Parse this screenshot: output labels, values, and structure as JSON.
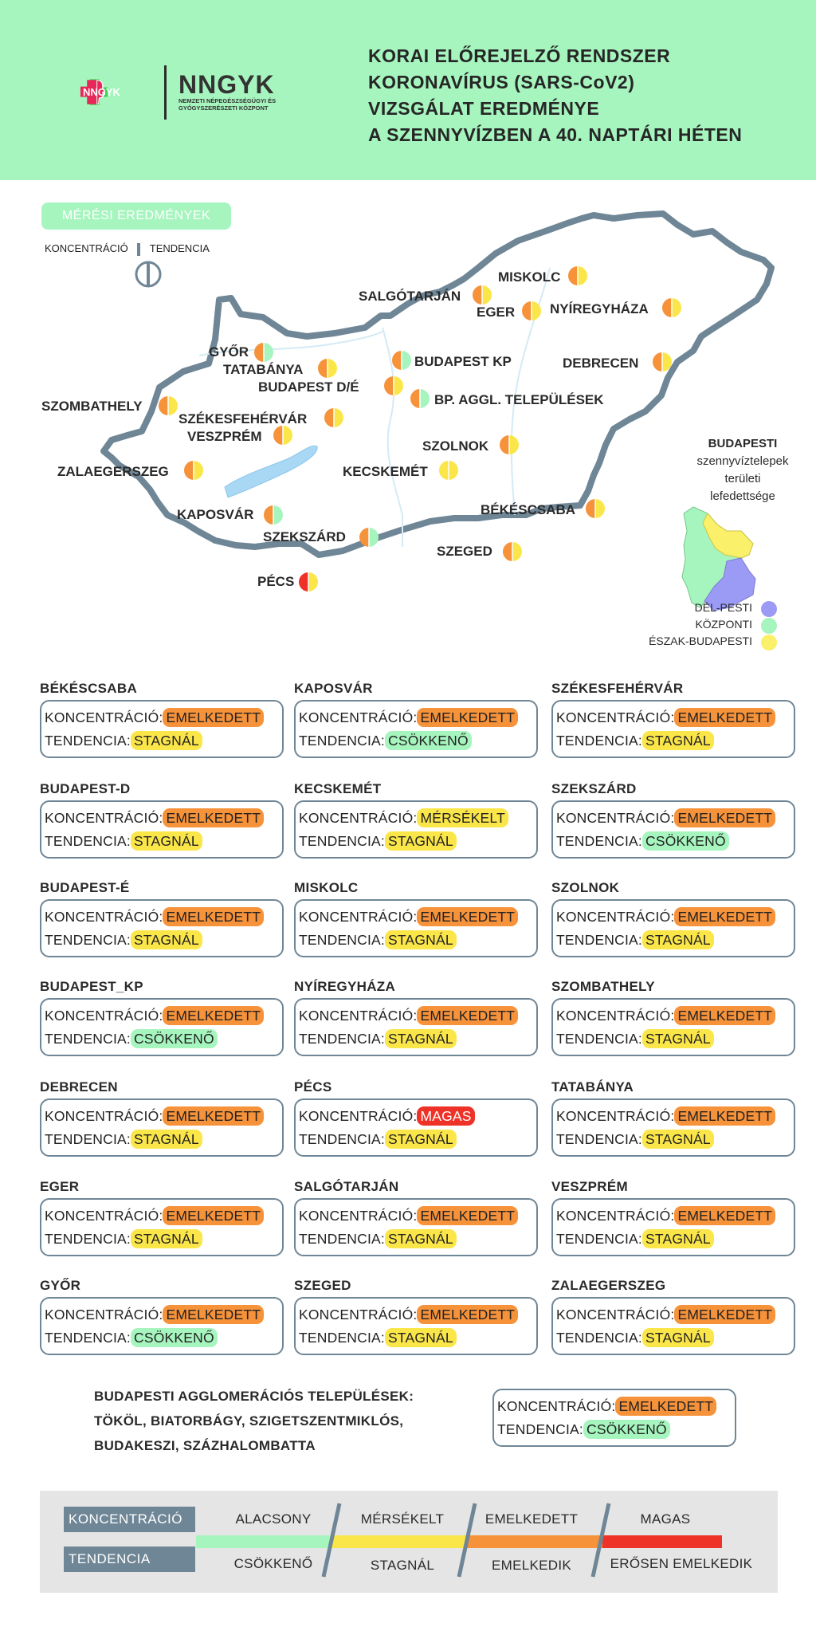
{
  "header": {
    "logo_badge": "NNGYK",
    "logo_title": "NNGYK",
    "logo_subtitle": "NEMZETI NÉPEGÉSZSÉGÜGYI ÉS GYÓGYSZERÉSZETI KÖZPONT",
    "title_lines": [
      "KORAI ELŐREJELZŐ RENDSZER",
      "KORONAVÍRUS (SARS-CoV2)",
      "VIZSGÁLAT EREDMÉNYE",
      "A SZENNYVÍZBEN A 40. NAPTÁRI HÉTEN"
    ]
  },
  "map": {
    "badge": "MÉRÉSI EREDMÉNYEK",
    "legend_concentration": "KONCENTRÁCIÓ",
    "legend_trend": "TENDENCIA",
    "cities": [
      {
        "name": "MISKOLC",
        "left": "orange",
        "right": "yellow"
      },
      {
        "name": "SALGÓTARJÁN",
        "left": "orange",
        "right": "yellow"
      },
      {
        "name": "EGER",
        "left": "orange",
        "right": "yellow"
      },
      {
        "name": "NYÍREGYHÁZA",
        "left": "orange",
        "right": "yellow"
      },
      {
        "name": "GYŐR",
        "left": "orange",
        "right": "green"
      },
      {
        "name": "TATABÁNYA",
        "left": "orange",
        "right": "yellow"
      },
      {
        "name": "BUDAPEST KP",
        "left": "orange",
        "right": "green"
      },
      {
        "name": "BUDAPEST D/É",
        "left": "orange",
        "right": "yellow"
      },
      {
        "name": "DEBRECEN",
        "left": "orange",
        "right": "yellow"
      },
      {
        "name": "BP. AGGL. TELEPÜLÉSEK",
        "left": "orange",
        "right": "green"
      },
      {
        "name": "SZOMBATHELY",
        "left": "orange",
        "right": "yellow"
      },
      {
        "name": "SZÉKESFEHÉRVÁR",
        "left": "orange",
        "right": "yellow"
      },
      {
        "name": "VESZPRÉM",
        "left": "orange",
        "right": "yellow"
      },
      {
        "name": "SZOLNOK",
        "left": "orange",
        "right": "yellow"
      },
      {
        "name": "ZALAEGERSZEG",
        "left": "orange",
        "right": "yellow"
      },
      {
        "name": "KECSKEMÉT",
        "left": "yellow",
        "right": "yellow"
      },
      {
        "name": "BÉKÉSCSABA",
        "left": "orange",
        "right": "yellow"
      },
      {
        "name": "KAPOSVÁR",
        "left": "orange",
        "right": "green"
      },
      {
        "name": "SZEKSZÁRD",
        "left": "orange",
        "right": "green"
      },
      {
        "name": "SZEGED",
        "left": "orange",
        "right": "yellow"
      },
      {
        "name": "PÉCS",
        "left": "red",
        "right": "yellow"
      }
    ],
    "budapest_legend": [
      "BUDAPESTI",
      "szennyvíztelepek",
      "területi",
      "lefedettsége"
    ],
    "bp_keys": [
      {
        "label": "DÉL-PESTI",
        "color": "#9b9bf5"
      },
      {
        "label": "KÖZPONTI",
        "color": "#a6f5be"
      },
      {
        "label": "ÉSZAK-BUDAPESTI",
        "color": "#faf06a"
      }
    ]
  },
  "labels": {
    "concentration": "KONCENTRÁCIÓ:",
    "trend": "TENDENCIA:"
  },
  "levels": {
    "EMELKEDETT": "#f6923a",
    "MÉRSÉKELT": "#fbe64a",
    "MAGAS": "#ee3228",
    "STAGNÁL": "#fbe64a",
    "CSÖKKENŐ": "#a6f5be"
  },
  "cards": [
    {
      "title": "BÉKÉSCSABA",
      "conc": "EMELKEDETT",
      "trend": "STAGNÁL"
    },
    {
      "title": "KAPOSVÁR",
      "conc": "EMELKEDETT",
      "trend": "CSÖKKENŐ"
    },
    {
      "title": "SZÉKESFEHÉRVÁR",
      "conc": "EMELKEDETT",
      "trend": "STAGNÁL"
    },
    {
      "title": "BUDAPEST-D",
      "conc": "EMELKEDETT",
      "trend": "STAGNÁL"
    },
    {
      "title": "KECSKEMÉT",
      "conc": "MÉRSÉKELT",
      "trend": "STAGNÁL"
    },
    {
      "title": "SZEKSZÁRD",
      "conc": "EMELKEDETT",
      "trend": "CSÖKKENŐ"
    },
    {
      "title": "BUDAPEST-É",
      "conc": "EMELKEDETT",
      "trend": "STAGNÁL"
    },
    {
      "title": "MISKOLC",
      "conc": "EMELKEDETT",
      "trend": "STAGNÁL"
    },
    {
      "title": "SZOLNOK",
      "conc": "EMELKEDETT",
      "trend": "STAGNÁL"
    },
    {
      "title": "BUDAPEST_KP",
      "conc": "EMELKEDETT",
      "trend": "CSÖKKENŐ"
    },
    {
      "title": "NYÍREGYHÁZA",
      "conc": "EMELKEDETT",
      "trend": "STAGNÁL"
    },
    {
      "title": "SZOMBATHELY",
      "conc": "EMELKEDETT",
      "trend": "STAGNÁL"
    },
    {
      "title": "DEBRECEN",
      "conc": "EMELKEDETT",
      "trend": "STAGNÁL"
    },
    {
      "title": "PÉCS",
      "conc": "MAGAS",
      "trend": "STAGNÁL"
    },
    {
      "title": "TATABÁNYA",
      "conc": "EMELKEDETT",
      "trend": "STAGNÁL"
    },
    {
      "title": "EGER",
      "conc": "EMELKEDETT",
      "trend": "STAGNÁL"
    },
    {
      "title": "SALGÓTARJÁN",
      "conc": "EMELKEDETT",
      "trend": "STAGNÁL"
    },
    {
      "title": "VESZPRÉM",
      "conc": "EMELKEDETT",
      "trend": "STAGNÁL"
    },
    {
      "title": "GYŐR",
      "conc": "EMELKEDETT",
      "trend": "CSÖKKENŐ"
    },
    {
      "title": "SZEGED",
      "conc": "EMELKEDETT",
      "trend": "STAGNÁL"
    },
    {
      "title": "ZALAEGERSZEG",
      "conc": "EMELKEDETT",
      "trend": "STAGNÁL"
    }
  ],
  "agglomeration": {
    "lines": [
      "BUDAPESTI AGGLOMERÁCIÓS TELEPÜLÉSEK:",
      "TÖKÖL, BIATORBÁGY, SZIGETSZENTMIKLÓS,",
      "BUDAKESZI, SZÁZHALOMBATTA"
    ],
    "conc": "EMELKEDETT",
    "trend": "CSÖKKENŐ"
  },
  "bottom_legend": {
    "concentration_label": "KONCENTRÁCIÓ",
    "trend_label": "TENDENCIA",
    "concentration_levels": [
      "ALACSONY",
      "MÉRSÉKELT",
      "EMELKEDETT",
      "MAGAS"
    ],
    "trend_levels": [
      "CSÖKKENŐ",
      "STAGNÁL",
      "EMELKEDIK",
      "ERŐSEN EMELKEDIK"
    ],
    "colors": [
      "#a6f5be",
      "#fbe64a",
      "#f6923a",
      "#ee3228"
    ]
  }
}
